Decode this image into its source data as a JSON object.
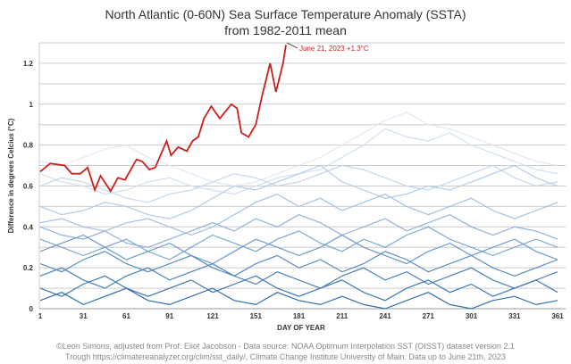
{
  "chart_data": {
    "type": "line",
    "title": "North Atlantic (0-60N) Sea Surface Temperature Anomaly (SSTA)",
    "subtitle": "from 1982-2011 mean",
    "xlabel": "DAY OF YEAR",
    "ylabel": "Difference in degrees Celcius (°C)",
    "xlim": [
      1,
      365
    ],
    "ylim": [
      0,
      1.3
    ],
    "x_ticks": [
      1,
      31,
      61,
      91,
      121,
      151,
      181,
      211,
      241,
      271,
      301,
      331,
      361
    ],
    "y_ticks": [
      0,
      0.2,
      0.4,
      0.6,
      0.8,
      1,
      1.2
    ],
    "y_tick_labels": [
      "0",
      "0.2",
      "0.4",
      "0.6",
      "0.8",
      "1",
      "1.2"
    ],
    "grid": "horizontal every 0.1",
    "highlight_series": {
      "color": "#cc1f1f",
      "x": [
        1,
        8,
        18,
        23,
        29,
        34,
        39,
        43,
        50,
        55,
        60,
        68,
        72,
        77,
        81,
        89,
        92,
        97,
        103,
        107,
        111,
        115,
        120,
        126,
        134,
        138,
        141,
        146,
        151,
        155,
        161,
        165,
        170,
        172
      ],
      "y": [
        0.67,
        0.71,
        0.7,
        0.66,
        0.66,
        0.69,
        0.58,
        0.65,
        0.575,
        0.64,
        0.63,
        0.73,
        0.72,
        0.68,
        0.69,
        0.82,
        0.75,
        0.79,
        0.77,
        0.82,
        0.84,
        0.93,
        0.99,
        0.93,
        1.0,
        0.98,
        0.86,
        0.84,
        0.9,
        1.03,
        1.2,
        1.06,
        1.2,
        1.29
      ]
    },
    "annotation": "June 21, 2023 +1.3°C",
    "background_series_x": [
      1,
      16,
      31,
      46,
      61,
      76,
      91,
      106,
      121,
      136,
      151,
      166,
      181,
      196,
      211,
      226,
      241,
      256,
      271,
      286,
      301,
      316,
      331,
      346,
      361
    ],
    "background_series": [
      {
        "color": "#dfe8f3",
        "values": [
          0.72,
          0.7,
          0.74,
          0.78,
          0.8,
          0.74,
          0.7,
          0.66,
          0.62,
          0.6,
          0.62,
          0.66,
          0.7,
          0.74,
          0.8,
          0.86,
          0.92,
          0.96,
          0.9,
          0.88,
          0.84,
          0.8,
          0.76,
          0.72,
          0.7
        ]
      },
      {
        "color": "#d2e0ef",
        "values": [
          0.66,
          0.62,
          0.6,
          0.56,
          0.58,
          0.62,
          0.64,
          0.6,
          0.58,
          0.56,
          0.6,
          0.64,
          0.66,
          0.68,
          0.74,
          0.8,
          0.88,
          0.84,
          0.82,
          0.86,
          0.8,
          0.76,
          0.72,
          0.68,
          0.66
        ]
      },
      {
        "color": "#c4d7ec",
        "values": [
          0.6,
          0.64,
          0.62,
          0.58,
          0.54,
          0.52,
          0.56,
          0.58,
          0.62,
          0.66,
          0.64,
          0.6,
          0.62,
          0.66,
          0.7,
          0.68,
          0.64,
          0.6,
          0.58,
          0.62,
          0.66,
          0.7,
          0.64,
          0.6,
          0.62
        ]
      },
      {
        "color": "#b3cbe6",
        "values": [
          0.5,
          0.46,
          0.48,
          0.52,
          0.5,
          0.46,
          0.44,
          0.48,
          0.54,
          0.6,
          0.58,
          0.62,
          0.66,
          0.7,
          0.62,
          0.58,
          0.54,
          0.56,
          0.6,
          0.58,
          0.62,
          0.66,
          0.7,
          0.64,
          0.6
        ]
      },
      {
        "color": "#a3c0e0",
        "values": [
          0.42,
          0.44,
          0.4,
          0.38,
          0.42,
          0.44,
          0.4,
          0.36,
          0.4,
          0.46,
          0.52,
          0.56,
          0.5,
          0.54,
          0.48,
          0.52,
          0.56,
          0.5,
          0.46,
          0.5,
          0.54,
          0.48,
          0.44,
          0.48,
          0.52
        ]
      },
      {
        "color": "#8fb2d9",
        "values": [
          0.4,
          0.36,
          0.34,
          0.38,
          0.32,
          0.3,
          0.34,
          0.38,
          0.42,
          0.38,
          0.44,
          0.4,
          0.46,
          0.42,
          0.36,
          0.4,
          0.44,
          0.38,
          0.42,
          0.46,
          0.4,
          0.36,
          0.4,
          0.38,
          0.34
        ]
      },
      {
        "color": "#7da5d2",
        "values": [
          0.34,
          0.3,
          0.26,
          0.3,
          0.34,
          0.28,
          0.24,
          0.3,
          0.36,
          0.32,
          0.28,
          0.34,
          0.38,
          0.32,
          0.28,
          0.34,
          0.3,
          0.36,
          0.4,
          0.34,
          0.3,
          0.26,
          0.3,
          0.34,
          0.3
        ]
      },
      {
        "color": "#6a98cb",
        "values": [
          0.28,
          0.32,
          0.36,
          0.3,
          0.24,
          0.28,
          0.32,
          0.26,
          0.22,
          0.28,
          0.34,
          0.3,
          0.26,
          0.3,
          0.36,
          0.3,
          0.26,
          0.22,
          0.28,
          0.32,
          0.26,
          0.3,
          0.34,
          0.28,
          0.24
        ]
      },
      {
        "color": "#5b8dc4",
        "values": [
          0.22,
          0.18,
          0.24,
          0.28,
          0.22,
          0.18,
          0.22,
          0.26,
          0.2,
          0.16,
          0.22,
          0.26,
          0.2,
          0.24,
          0.18,
          0.22,
          0.28,
          0.24,
          0.18,
          0.22,
          0.26,
          0.2,
          0.16,
          0.2,
          0.24
        ]
      },
      {
        "color": "#4c82bd",
        "values": [
          0.16,
          0.2,
          0.14,
          0.1,
          0.16,
          0.2,
          0.14,
          0.18,
          0.22,
          0.16,
          0.12,
          0.18,
          0.14,
          0.1,
          0.16,
          0.2,
          0.14,
          0.18,
          0.12,
          0.16,
          0.2,
          0.14,
          0.1,
          0.14,
          0.18
        ]
      },
      {
        "color": "#3f78b6",
        "values": [
          0.1,
          0.06,
          0.12,
          0.16,
          0.1,
          0.06,
          0.1,
          0.14,
          0.08,
          0.12,
          0.16,
          0.1,
          0.06,
          0.1,
          0.14,
          0.08,
          0.04,
          0.1,
          0.14,
          0.08,
          0.12,
          0.06,
          0.1,
          0.14,
          0.08
        ]
      },
      {
        "color": "#346eae",
        "values": [
          0.04,
          0.08,
          0.02,
          0.06,
          0.1,
          0.04,
          0.02,
          0.06,
          0.1,
          0.04,
          0.02,
          0.08,
          0.04,
          0.02,
          0.06,
          0.02,
          0.0,
          0.04,
          0.08,
          0.02,
          0.0,
          0.04,
          0.06,
          0.02,
          0.04
        ]
      }
    ]
  },
  "footer": {
    "line1": "©Leon Simons, adjusted from Prof. Eliot Jacobson - Data source: NOAA Optimum Interpolation SST (OISST) dataset version 2.1",
    "line2": "Trough https://climatereanalyzer.org/clim/sst_daily/, Climate Change Institute University of Main. Data up to June 21th, 2023"
  }
}
